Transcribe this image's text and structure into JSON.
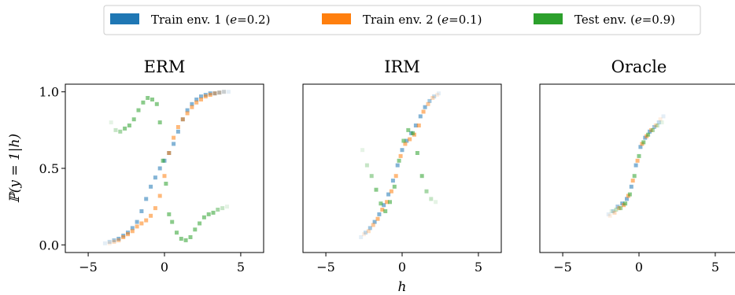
{
  "legend": {
    "entries": [
      {
        "label": "Train env. 1 (e=0.2)",
        "text": "Train env. 1 (",
        "var": "e",
        "value": "=0.2)",
        "color": "#1f77b4"
      },
      {
        "label": "Train env. 2 (e=0.1)",
        "text": "Train env. 2 (",
        "var": "e",
        "value": "=0.1)",
        "color": "#ff7f0e"
      },
      {
        "label": "Test env. (e=0.9)",
        "text": "Test env. (",
        "var": "e",
        "value": "=0.9)",
        "color": "#2ca02c"
      }
    ]
  },
  "chart_data": [
    {
      "type": "scatter",
      "title": "ERM",
      "ylabel": "ℙ(y = 1|h)",
      "xlabel": "",
      "xlim": [
        -6.5,
        6.5
      ],
      "ylim": [
        -0.05,
        1.05
      ],
      "xticks": [
        -5,
        0,
        5
      ],
      "xtick_labels": [
        "−5",
        "0",
        "5"
      ],
      "yticks": [
        0.0,
        0.5,
        1.0
      ],
      "ytick_labels": [
        "0.0",
        "0.5",
        "1.0"
      ],
      "series": [
        {
          "name": "Train env. 1 (e=0.2)",
          "color": "#1f77b4",
          "x": [
            -3.9,
            -3.6,
            -3.3,
            -3.0,
            -2.7,
            -2.4,
            -2.1,
            -1.8,
            -1.5,
            -1.2,
            -0.9,
            -0.6,
            -0.3,
            0.0,
            0.3,
            0.6,
            0.9,
            1.2,
            1.5,
            1.8,
            2.1,
            2.4,
            2.7,
            3.0,
            3.3,
            3.6,
            3.9,
            4.2
          ],
          "y": [
            0.01,
            0.02,
            0.03,
            0.04,
            0.06,
            0.08,
            0.11,
            0.15,
            0.22,
            0.3,
            0.38,
            0.44,
            0.5,
            0.55,
            0.6,
            0.66,
            0.74,
            0.82,
            0.88,
            0.92,
            0.95,
            0.97,
            0.98,
            0.99,
            0.99,
            0.995,
            1.0,
            1.0
          ]
        },
        {
          "name": "Train env. 2 (e=0.1)",
          "color": "#ff7f0e",
          "x": [
            -3.6,
            -3.3,
            -3.0,
            -2.7,
            -2.4,
            -2.1,
            -1.8,
            -1.5,
            -1.2,
            -0.9,
            -0.6,
            -0.3,
            0.0,
            0.3,
            0.6,
            0.9,
            1.2,
            1.5,
            1.8,
            2.1,
            2.4,
            2.7,
            3.0,
            3.3,
            3.6,
            3.9
          ],
          "y": [
            0.01,
            0.02,
            0.03,
            0.05,
            0.07,
            0.09,
            0.12,
            0.14,
            0.16,
            0.19,
            0.24,
            0.32,
            0.45,
            0.6,
            0.7,
            0.77,
            0.82,
            0.86,
            0.9,
            0.93,
            0.95,
            0.97,
            0.98,
            0.99,
            0.995,
            1.0
          ]
        },
        {
          "name": "Test env. (e=0.9)",
          "color": "#2ca02c",
          "x": [
            -3.5,
            -3.2,
            -2.9,
            -2.6,
            -2.3,
            -2.0,
            -1.7,
            -1.4,
            -1.1,
            -0.8,
            -0.5,
            -0.3,
            -0.1,
            0.1,
            0.3,
            0.5,
            0.8,
            1.1,
            1.4,
            1.7,
            2.0,
            2.3,
            2.6,
            2.9,
            3.2,
            3.5,
            3.8,
            4.1
          ],
          "y": [
            0.8,
            0.75,
            0.74,
            0.76,
            0.78,
            0.82,
            0.88,
            0.93,
            0.96,
            0.95,
            0.92,
            0.8,
            0.55,
            0.4,
            0.2,
            0.15,
            0.08,
            0.04,
            0.03,
            0.05,
            0.1,
            0.14,
            0.18,
            0.2,
            0.21,
            0.23,
            0.24,
            0.25
          ]
        }
      ]
    },
    {
      "type": "scatter",
      "title": "IRM",
      "xlabel": "h",
      "ylabel": "",
      "xlim": [
        -6.5,
        6.5
      ],
      "ylim": [
        -0.05,
        1.05
      ],
      "xticks": [
        -5,
        0,
        5
      ],
      "xtick_labels": [
        "−5",
        "0",
        "5"
      ],
      "series": [
        {
          "name": "Train env. 1 (e=0.2)",
          "color": "#1f77b4",
          "x": [
            -2.7,
            -2.4,
            -2.1,
            -1.8,
            -1.5,
            -1.2,
            -0.9,
            -0.6,
            -0.3,
            0.0,
            0.3,
            0.6,
            0.9,
            1.2,
            1.5,
            1.8,
            2.1,
            2.4
          ],
          "y": [
            0.05,
            0.08,
            0.11,
            0.15,
            0.2,
            0.26,
            0.33,
            0.42,
            0.52,
            0.62,
            0.68,
            0.73,
            0.78,
            0.84,
            0.9,
            0.94,
            0.97,
            0.99
          ]
        },
        {
          "name": "Train env. 2 (e=0.1)",
          "color": "#ff7f0e",
          "x": [
            -2.5,
            -2.2,
            -1.9,
            -1.6,
            -1.3,
            -1.0,
            -0.7,
            -0.4,
            -0.1,
            0.2,
            0.5,
            0.8,
            1.1,
            1.4,
            1.7,
            2.0,
            2.3
          ],
          "y": [
            0.07,
            0.09,
            0.13,
            0.17,
            0.23,
            0.28,
            0.35,
            0.45,
            0.58,
            0.66,
            0.69,
            0.72,
            0.78,
            0.87,
            0.92,
            0.96,
            0.98
          ]
        },
        {
          "name": "Test env. (e=0.9)",
          "color": "#2ca02c",
          "x": [
            -2.6,
            -2.3,
            -2.0,
            -1.7,
            -1.4,
            -1.1,
            -0.8,
            -0.5,
            -0.2,
            0.1,
            0.4,
            0.7,
            1.0,
            1.3,
            1.6,
            1.9,
            2.2
          ],
          "y": [
            0.62,
            0.52,
            0.45,
            0.36,
            0.27,
            0.22,
            0.28,
            0.38,
            0.55,
            0.68,
            0.75,
            0.73,
            0.6,
            0.45,
            0.35,
            0.3,
            0.28
          ]
        }
      ]
    },
    {
      "type": "scatter",
      "title": "Oracle",
      "xlabel": "",
      "ylabel": "",
      "xlim": [
        -6.5,
        6.5
      ],
      "ylim": [
        -0.05,
        1.05
      ],
      "xticks": [
        -5,
        0,
        5
      ],
      "xtick_labels": [
        "−5",
        "0",
        "5"
      ],
      "series": [
        {
          "name": "Train env. 1 (e=0.2)",
          "color": "#1f77b4",
          "x": [
            -2.0,
            -1.7,
            -1.4,
            -1.1,
            -0.8,
            -0.5,
            -0.2,
            0.1,
            0.4,
            0.7,
            1.0,
            1.3,
            1.6
          ],
          "y": [
            0.2,
            0.22,
            0.25,
            0.27,
            0.3,
            0.38,
            0.52,
            0.64,
            0.7,
            0.74,
            0.77,
            0.8,
            0.84
          ]
        },
        {
          "name": "Train env. 2 (e=0.1)",
          "color": "#ff7f0e",
          "x": [
            -1.9,
            -1.6,
            -1.3,
            -1.0,
            -0.7,
            -0.4,
            -0.1,
            0.2,
            0.5,
            0.8,
            1.1,
            1.4
          ],
          "y": [
            0.19,
            0.21,
            0.24,
            0.26,
            0.32,
            0.42,
            0.55,
            0.66,
            0.71,
            0.75,
            0.78,
            0.82
          ]
        },
        {
          "name": "Test env. (e=0.9)",
          "color": "#2ca02c",
          "x": [
            -1.8,
            -1.5,
            -1.2,
            -0.9,
            -0.6,
            -0.3,
            0.0,
            0.3,
            0.6,
            0.9,
            1.2,
            1.5
          ],
          "y": [
            0.22,
            0.23,
            0.24,
            0.27,
            0.33,
            0.45,
            0.58,
            0.67,
            0.72,
            0.75,
            0.78,
            0.8
          ]
        }
      ]
    }
  ]
}
